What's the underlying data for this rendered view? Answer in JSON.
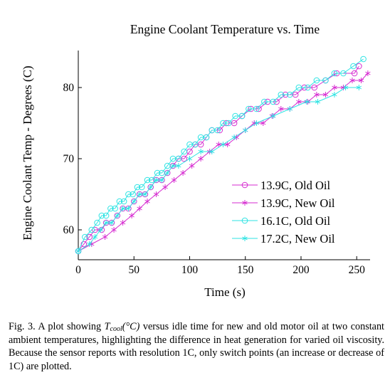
{
  "chart_data": {
    "type": "line",
    "title": "Engine Coolant Temperature vs. Time",
    "xlabel": "Time (s)",
    "ylabel": "Engine Coolant Temp - Degrees (C)",
    "xlim": [
      0,
      262
    ],
    "ylim": [
      55.8,
      85.2
    ],
    "xticks": [
      0,
      50,
      100,
      150,
      200,
      250
    ],
    "yticks": [
      60,
      70,
      80
    ],
    "grid": false,
    "legend_position": "lower-right",
    "series": [
      {
        "name": "13.9C, Old Oil",
        "color": "#d62bd0",
        "marker": "circle",
        "x": [
          0,
          5,
          10,
          15,
          21,
          25,
          30,
          35,
          40,
          45,
          50,
          55,
          60,
          65,
          70,
          75,
          80,
          85,
          90,
          95,
          100,
          105,
          110,
          115,
          120,
          127,
          133,
          140,
          147,
          155,
          162,
          170,
          178,
          186,
          195,
          203,
          212,
          222,
          232,
          248,
          252
        ],
        "y": [
          57,
          58,
          59,
          60,
          60,
          61,
          61,
          62,
          63,
          63,
          64,
          65,
          65,
          66,
          67,
          67,
          68,
          69,
          70,
          70,
          71,
          72,
          72,
          73,
          74,
          74,
          75,
          75,
          76,
          77,
          77,
          78,
          78,
          79,
          79,
          80,
          80,
          81,
          82,
          82,
          83
        ]
      },
      {
        "name": "13.9C, New Oil",
        "color": "#d62bd0",
        "marker": "asterisk",
        "x": [
          0,
          12,
          24,
          32,
          40,
          48,
          55,
          62,
          70,
          78,
          86,
          94,
          102,
          110,
          118,
          126,
          134,
          142,
          150,
          158,
          166,
          174,
          182,
          190,
          198,
          206,
          214,
          222,
          230,
          238,
          246,
          254,
          260
        ],
        "y": [
          57,
          58,
          59,
          60,
          61,
          62,
          63,
          64,
          65,
          66,
          67,
          68,
          69,
          70,
          71,
          72,
          72,
          73,
          74,
          75,
          75,
          76,
          77,
          77,
          78,
          78,
          79,
          79,
          80,
          80,
          81,
          81,
          82
        ]
      },
      {
        "name": "16.1C, Old Oil",
        "color": "#2ee3e3",
        "marker": "circle",
        "x": [
          0,
          6,
          12,
          17,
          21,
          25,
          29,
          33,
          37,
          41,
          45,
          49,
          53,
          57,
          62,
          66,
          71,
          75,
          80,
          85,
          90,
          95,
          100,
          105,
          110,
          115,
          120,
          125,
          130,
          135,
          141,
          147,
          153,
          160,
          167,
          175,
          182,
          190,
          198,
          206,
          214,
          222,
          230,
          238,
          247,
          256
        ],
        "y": [
          57,
          59,
          60,
          61,
          62,
          62,
          63,
          63,
          64,
          64,
          65,
          65,
          66,
          66,
          67,
          67,
          68,
          68,
          69,
          70,
          70,
          71,
          72,
          72,
          73,
          73,
          74,
          74,
          75,
          75,
          76,
          76,
          77,
          77,
          78,
          78,
          79,
          79,
          80,
          80,
          81,
          81,
          82,
          82,
          83,
          84
        ]
      },
      {
        "name": "17.2C, New Oil",
        "color": "#2ee3e3",
        "marker": "asterisk",
        "x": [
          0,
          10,
          15,
          20,
          25,
          30,
          35,
          40,
          45,
          50,
          55,
          60,
          65,
          70,
          75,
          80,
          85,
          90,
          100,
          110,
          120,
          130,
          140,
          150,
          160,
          175,
          190,
          205,
          215,
          230,
          240,
          252
        ],
        "y": [
          57,
          58,
          59,
          60,
          61,
          61,
          62,
          63,
          63,
          64,
          65,
          65,
          66,
          67,
          67,
          68,
          69,
          69,
          70,
          71,
          71,
          72,
          73,
          74,
          75,
          76,
          77,
          78,
          78,
          79,
          80,
          80
        ]
      }
    ]
  },
  "caption": {
    "prefix": "Fig. 3.   A plot showing ",
    "math_base": "T",
    "math_sub": "cool",
    "math_unit": "(°C)",
    "rest": " versus idle time for new and old motor oil at two constant ambient temperatures, highlighting the difference in heat generation for varied oil viscosity. Because the sensor reports with resolution 1C, only switch points (an increase or decrease of 1C) are plotted."
  }
}
